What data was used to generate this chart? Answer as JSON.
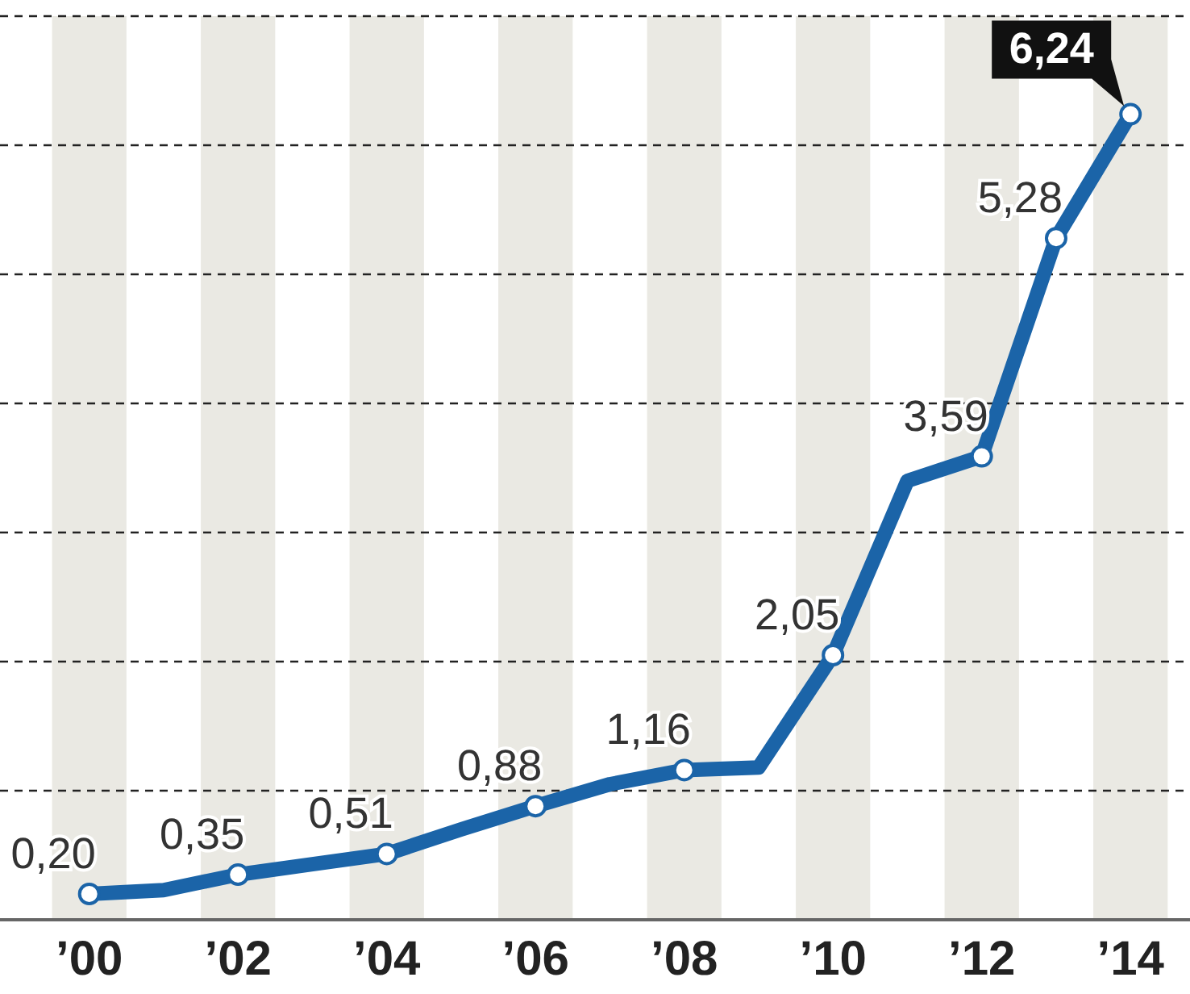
{
  "chart_data": {
    "type": "line",
    "x": [
      2000,
      2001,
      2002,
      2003,
      2004,
      2005,
      2006,
      2007,
      2008,
      2009,
      2010,
      2011,
      2012,
      2013,
      2014
    ],
    "series": [
      {
        "color": "#1b64a8",
        "values": [
          0.2,
          0.23,
          0.35,
          0.43,
          0.51,
          0.7,
          0.88,
          1.05,
          1.16,
          1.18,
          2.05,
          3.4,
          3.59,
          5.28,
          6.24
        ],
        "value_labels": [
          "0,20",
          null,
          "0,35",
          null,
          "0,51",
          null,
          "0,88",
          null,
          "1,16",
          null,
          "2,05",
          null,
          "3,59",
          "5,28",
          "6,24"
        ]
      }
    ],
    "xlim": [
      1998.8,
      2014.8
    ],
    "xticks": [
      {
        "value": 2000,
        "label": "’00"
      },
      {
        "value": 2002,
        "label": "’02"
      },
      {
        "value": 2004,
        "label": "’04"
      },
      {
        "value": 2006,
        "label": "’06"
      },
      {
        "value": 2008,
        "label": "’08"
      },
      {
        "value": 2010,
        "label": "’10"
      },
      {
        "value": 2012,
        "label": "’12"
      },
      {
        "value": 2014,
        "label": "’14"
      }
    ],
    "ylim": [
      0,
      7
    ],
    "yticks": [
      {
        "value": 1,
        "label": null
      },
      {
        "value": 2,
        "label": null
      },
      {
        "value": 3,
        "label": null
      },
      {
        "value": 4,
        "label": null
      },
      {
        "value": 5,
        "label": null
      },
      {
        "value": 6,
        "label": null
      },
      {
        "value": 7,
        "label": null
      }
    ],
    "tick_labels": "x",
    "grid": "y",
    "marker": "circle",
    "line_style": "solid",
    "bands": [
      {
        "axis": "x",
        "from": 1999.5,
        "to": 2000.5,
        "color": "#eae9e3"
      },
      {
        "axis": "x",
        "from": 2001.5,
        "to": 2002.5,
        "color": "#eae9e3"
      },
      {
        "axis": "x",
        "from": 2003.5,
        "to": 2004.5,
        "color": "#eae9e3"
      },
      {
        "axis": "x",
        "from": 2005.5,
        "to": 2006.5,
        "color": "#eae9e3"
      },
      {
        "axis": "x",
        "from": 2007.5,
        "to": 2008.5,
        "color": "#eae9e3"
      },
      {
        "axis": "x",
        "from": 2009.5,
        "to": 2010.5,
        "color": "#eae9e3"
      },
      {
        "axis": "x",
        "from": 2011.5,
        "to": 2012.5,
        "color": "#eae9e3"
      },
      {
        "axis": "x",
        "from": 2013.5,
        "to": 2014.5,
        "color": "#eae9e3"
      }
    ]
  }
}
